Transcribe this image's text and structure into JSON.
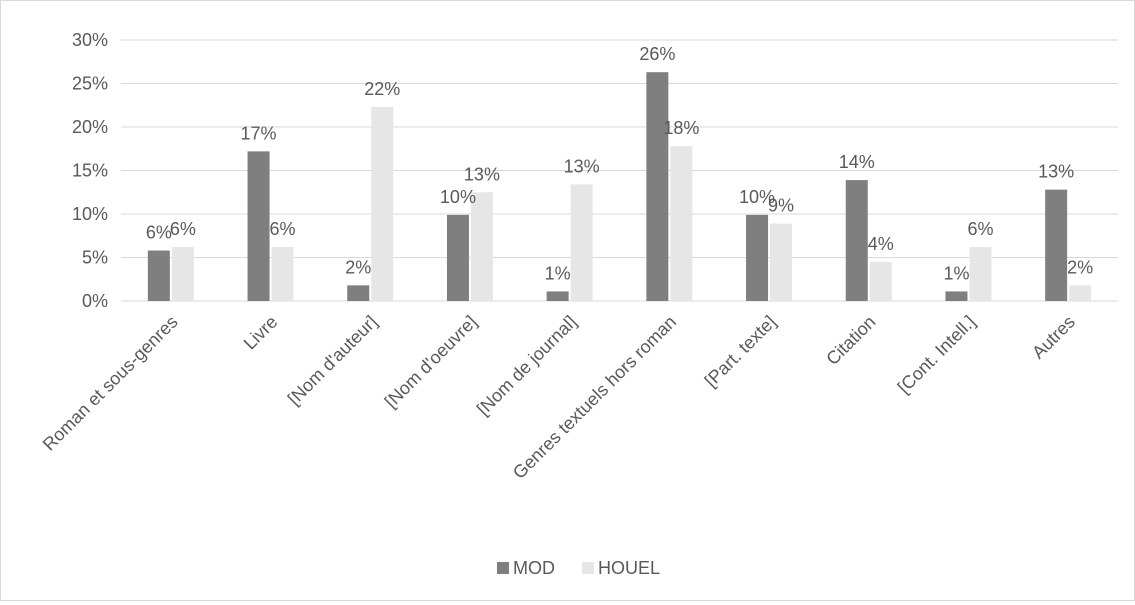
{
  "chart_data": {
    "type": "bar",
    "title": "",
    "xlabel": "",
    "ylabel": "",
    "ylim": [
      0,
      0.3
    ],
    "yticks": [
      0,
      0.05,
      0.1,
      0.15,
      0.2,
      0.25,
      0.3
    ],
    "ytick_labels": [
      "0%",
      "5%",
      "10%",
      "15%",
      "20%",
      "25%",
      "30%"
    ],
    "grid": true,
    "legend_position": "bottom",
    "categories": [
      "Roman et sous-genres",
      "Livre",
      "[Nom d'auteur]",
      "[Nom d'oeuvre]",
      "[Nom de journal]",
      "Genres textuels hors roman",
      "[Part. texte]",
      "Citation",
      "[Cont. Intell.]",
      "Autres"
    ],
    "series": [
      {
        "name": "MOD",
        "color": "#7f7f7f",
        "values": [
          0.058,
          0.172,
          0.018,
          0.099,
          0.011,
          0.263,
          0.099,
          0.139,
          0.011,
          0.128
        ],
        "labels": [
          "6%",
          "17%",
          "2%",
          "10%",
          "1%",
          "26%",
          "10%",
          "14%",
          "1%",
          "13%"
        ]
      },
      {
        "name": "HOUEL",
        "color": "#e7e6e6",
        "values": [
          0.062,
          0.062,
          0.223,
          0.125,
          0.134,
          0.178,
          0.089,
          0.045,
          0.062,
          0.018
        ],
        "labels": [
          "6%",
          "6%",
          "22%",
          "13%",
          "13%",
          "18%",
          "9%",
          "4%",
          "6%",
          "2%"
        ]
      }
    ]
  }
}
